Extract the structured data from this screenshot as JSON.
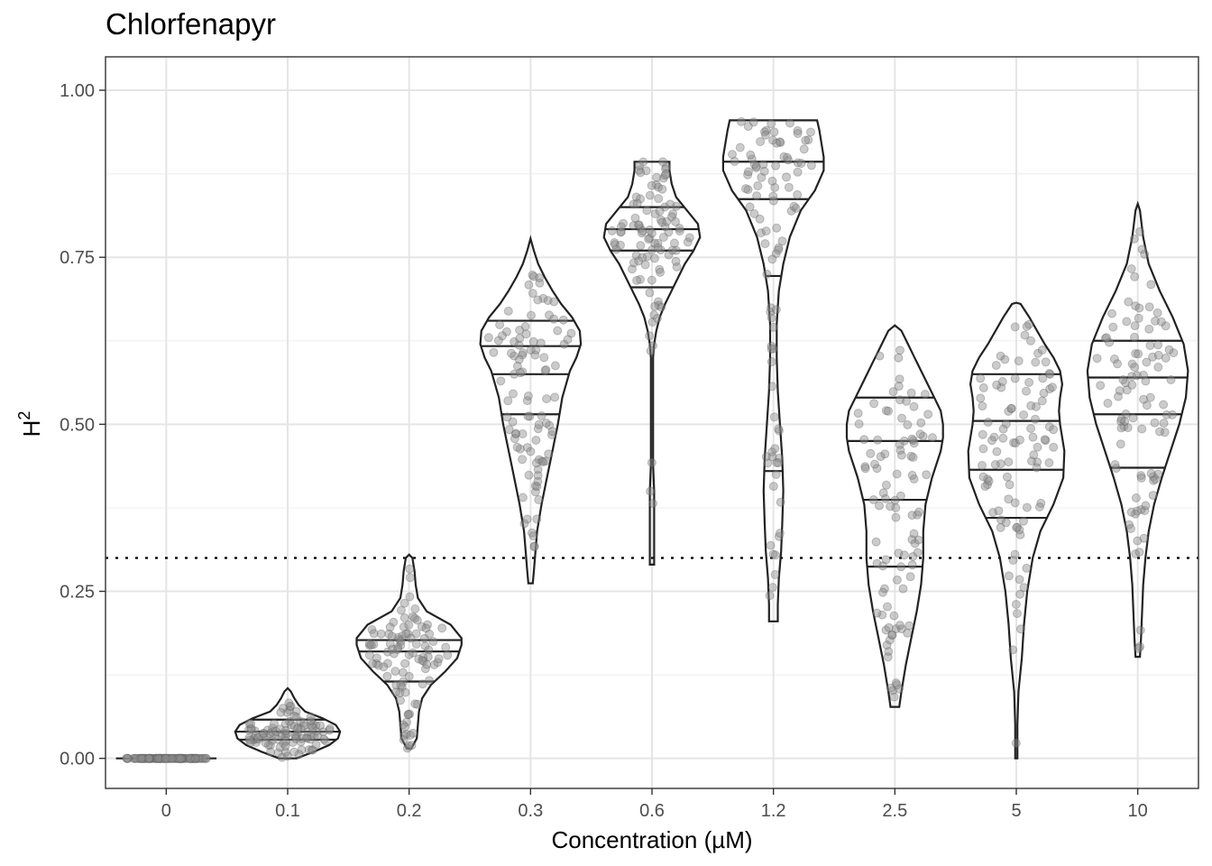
{
  "chart_data": {
    "type": "violin",
    "title": "Chlorfenapyr",
    "xlabel": "Concentration (µM)",
    "ylabel_main": "H",
    "ylabel_superscript": "2",
    "ylim": [
      -0.045,
      1.05
    ],
    "yticks": [
      0.0,
      0.25,
      0.5,
      0.75,
      1.0
    ],
    "ytick_labels": [
      "0.00",
      "0.25",
      "0.50",
      "0.75",
      "1.00"
    ],
    "threshold": 0.3,
    "categories": [
      "0",
      "0.1",
      "0.2",
      "0.3",
      "0.6",
      "1.2",
      "2.5",
      "5",
      "10"
    ],
    "groups": [
      {
        "name": "0",
        "min": 0.0,
        "max": 0.0,
        "quantiles": [],
        "n_points": 100,
        "density": [
          [
            0.0,
            0.46
          ]
        ]
      },
      {
        "name": "0.1",
        "min": 0.0,
        "max": 0.105,
        "quantiles": [
          0.028,
          0.04,
          0.058
        ],
        "n_points": 100,
        "density": [
          [
            0.0,
            0.08
          ],
          [
            0.01,
            0.24
          ],
          [
            0.02,
            0.38
          ],
          [
            0.03,
            0.46
          ],
          [
            0.04,
            0.48
          ],
          [
            0.05,
            0.44
          ],
          [
            0.06,
            0.32
          ],
          [
            0.07,
            0.16
          ],
          [
            0.08,
            0.1
          ],
          [
            0.09,
            0.06
          ],
          [
            0.1,
            0.03
          ],
          [
            0.105,
            0.0
          ]
        ]
      },
      {
        "name": "0.2",
        "min": 0.015,
        "max": 0.305,
        "quantiles": [
          0.115,
          0.16,
          0.177
        ],
        "n_points": 100,
        "density": [
          [
            0.015,
            0.02
          ],
          [
            0.03,
            0.07
          ],
          [
            0.05,
            0.08
          ],
          [
            0.07,
            0.09
          ],
          [
            0.09,
            0.12
          ],
          [
            0.11,
            0.2
          ],
          [
            0.13,
            0.33
          ],
          [
            0.15,
            0.44
          ],
          [
            0.17,
            0.48
          ],
          [
            0.18,
            0.48
          ],
          [
            0.2,
            0.38
          ],
          [
            0.22,
            0.16
          ],
          [
            0.24,
            0.08
          ],
          [
            0.26,
            0.06
          ],
          [
            0.28,
            0.05
          ],
          [
            0.3,
            0.03
          ],
          [
            0.305,
            0.0
          ]
        ]
      },
      {
        "name": "0.3",
        "min": 0.262,
        "max": 0.778,
        "quantiles": [
          0.515,
          0.575,
          0.617,
          0.655
        ],
        "n_points": 100,
        "density": [
          [
            0.262,
            0.02
          ],
          [
            0.28,
            0.03
          ],
          [
            0.3,
            0.04
          ],
          [
            0.34,
            0.06
          ],
          [
            0.38,
            0.1
          ],
          [
            0.42,
            0.15
          ],
          [
            0.46,
            0.2
          ],
          [
            0.5,
            0.25
          ],
          [
            0.54,
            0.29
          ],
          [
            0.58,
            0.36
          ],
          [
            0.6,
            0.42
          ],
          [
            0.62,
            0.46
          ],
          [
            0.64,
            0.45
          ],
          [
            0.66,
            0.38
          ],
          [
            0.68,
            0.28
          ],
          [
            0.7,
            0.2
          ],
          [
            0.72,
            0.13
          ],
          [
            0.74,
            0.07
          ],
          [
            0.76,
            0.03
          ],
          [
            0.778,
            0.0
          ]
        ]
      },
      {
        "name": "0.6",
        "min": 0.29,
        "max": 0.893,
        "quantiles": [
          0.705,
          0.76,
          0.792,
          0.825
        ],
        "n_points": 100,
        "density": [
          [
            0.29,
            0.02
          ],
          [
            0.32,
            0.02
          ],
          [
            0.36,
            0.02
          ],
          [
            0.4,
            0.02
          ],
          [
            0.44,
            0.01
          ],
          [
            0.5,
            0.01
          ],
          [
            0.56,
            0.01
          ],
          [
            0.6,
            0.01
          ],
          [
            0.62,
            0.02
          ],
          [
            0.64,
            0.04
          ],
          [
            0.66,
            0.07
          ],
          [
            0.68,
            0.12
          ],
          [
            0.7,
            0.18
          ],
          [
            0.72,
            0.24
          ],
          [
            0.74,
            0.3
          ],
          [
            0.76,
            0.38
          ],
          [
            0.78,
            0.44
          ],
          [
            0.8,
            0.42
          ],
          [
            0.82,
            0.32
          ],
          [
            0.84,
            0.22
          ],
          [
            0.86,
            0.18
          ],
          [
            0.88,
            0.16
          ],
          [
            0.893,
            0.16
          ]
        ]
      },
      {
        "name": "1.2",
        "min": 0.205,
        "max": 0.955,
        "quantiles": [
          0.43,
          0.722,
          0.837,
          0.893
        ],
        "n_points": 100,
        "density": [
          [
            0.205,
            0.04
          ],
          [
            0.23,
            0.04
          ],
          [
            0.27,
            0.05
          ],
          [
            0.31,
            0.07
          ],
          [
            0.35,
            0.08
          ],
          [
            0.4,
            0.09
          ],
          [
            0.45,
            0.08
          ],
          [
            0.5,
            0.06
          ],
          [
            0.55,
            0.04
          ],
          [
            0.6,
            0.03
          ],
          [
            0.65,
            0.03
          ],
          [
            0.7,
            0.05
          ],
          [
            0.74,
            0.09
          ],
          [
            0.78,
            0.15
          ],
          [
            0.82,
            0.25
          ],
          [
            0.85,
            0.38
          ],
          [
            0.88,
            0.46
          ],
          [
            0.9,
            0.46
          ],
          [
            0.92,
            0.44
          ],
          [
            0.94,
            0.42
          ],
          [
            0.955,
            0.4
          ]
        ]
      },
      {
        "name": "2.5",
        "min": 0.077,
        "max": 0.648,
        "quantiles": [
          0.287,
          0.387,
          0.475,
          0.54
        ],
        "n_points": 100,
        "density": [
          [
            0.077,
            0.04
          ],
          [
            0.1,
            0.06
          ],
          [
            0.14,
            0.1
          ],
          [
            0.18,
            0.15
          ],
          [
            0.22,
            0.2
          ],
          [
            0.26,
            0.24
          ],
          [
            0.3,
            0.26
          ],
          [
            0.34,
            0.26
          ],
          [
            0.38,
            0.28
          ],
          [
            0.42,
            0.34
          ],
          [
            0.46,
            0.42
          ],
          [
            0.48,
            0.44
          ],
          [
            0.5,
            0.44
          ],
          [
            0.52,
            0.42
          ],
          [
            0.54,
            0.36
          ],
          [
            0.56,
            0.3
          ],
          [
            0.58,
            0.24
          ],
          [
            0.6,
            0.18
          ],
          [
            0.62,
            0.12
          ],
          [
            0.64,
            0.06
          ],
          [
            0.648,
            0.0
          ]
        ]
      },
      {
        "name": "5",
        "min": 0.0,
        "max": 0.682,
        "quantiles": [
          0.36,
          0.432,
          0.505,
          0.575
        ],
        "n_points": 100,
        "density": [
          [
            0.0,
            0.01
          ],
          [
            0.05,
            0.01
          ],
          [
            0.1,
            0.02
          ],
          [
            0.15,
            0.05
          ],
          [
            0.2,
            0.07
          ],
          [
            0.25,
            0.1
          ],
          [
            0.3,
            0.15
          ],
          [
            0.34,
            0.22
          ],
          [
            0.38,
            0.34
          ],
          [
            0.42,
            0.43
          ],
          [
            0.46,
            0.44
          ],
          [
            0.5,
            0.4
          ],
          [
            0.52,
            0.39
          ],
          [
            0.54,
            0.4
          ],
          [
            0.56,
            0.42
          ],
          [
            0.58,
            0.4
          ],
          [
            0.6,
            0.34
          ],
          [
            0.62,
            0.26
          ],
          [
            0.64,
            0.19
          ],
          [
            0.66,
            0.12
          ],
          [
            0.68,
            0.04
          ],
          [
            0.682,
            0.0
          ]
        ]
      },
      {
        "name": "10",
        "min": 0.152,
        "max": 0.83,
        "quantiles": [
          0.435,
          0.515,
          0.57,
          0.625
        ],
        "n_points": 100,
        "density": [
          [
            0.152,
            0.02
          ],
          [
            0.18,
            0.03
          ],
          [
            0.22,
            0.04
          ],
          [
            0.26,
            0.05
          ],
          [
            0.3,
            0.07
          ],
          [
            0.34,
            0.1
          ],
          [
            0.38,
            0.15
          ],
          [
            0.42,
            0.22
          ],
          [
            0.46,
            0.3
          ],
          [
            0.5,
            0.38
          ],
          [
            0.54,
            0.44
          ],
          [
            0.58,
            0.46
          ],
          [
            0.62,
            0.42
          ],
          [
            0.66,
            0.32
          ],
          [
            0.7,
            0.2
          ],
          [
            0.74,
            0.1
          ],
          [
            0.78,
            0.05
          ],
          [
            0.82,
            0.02
          ],
          [
            0.83,
            0.0
          ]
        ]
      }
    ]
  }
}
